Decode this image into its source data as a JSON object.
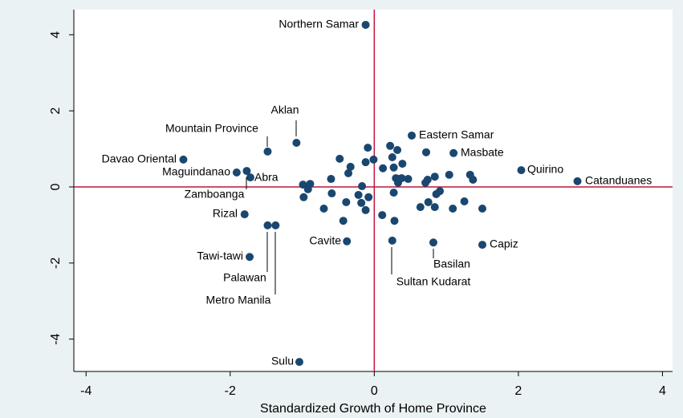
{
  "chart_data": {
    "type": "scatter",
    "x_label": "Standardized Growth of Home Province",
    "xlim": [
      -4.17,
      4.14
    ],
    "ylim": [
      -4.85,
      4.66
    ],
    "xticks": [
      -4,
      -2,
      0,
      2,
      4
    ],
    "yticks": [
      -4,
      -2,
      0,
      2,
      4
    ],
    "reference_lines": {
      "x": 0,
      "y": 0,
      "color": "#c0143c"
    },
    "series": [
      {
        "color": "#1a476f",
        "labels": [
          "Northern Samar",
          "Aklan",
          "Mountain Province",
          "Eastern Samar",
          "Masbate",
          "Davao Oriental",
          "Quirino",
          "Catanduanes",
          "Maguindanao",
          "Abra",
          "Zamboanga",
          "Rizal",
          "Cavite",
          "Capiz",
          "Basilan",
          "Sultan Kudarat",
          "Tawi-tawi",
          "Palawan",
          "Metro Manila",
          "Sulu"
        ],
        "x": [
          -0.12,
          -1.08,
          -1.48,
          0.52,
          1.1,
          -2.65,
          2.04,
          2.82,
          -1.91,
          -1.72,
          -1.77,
          -1.8,
          -0.38,
          1.5,
          0.82,
          0.25,
          -1.73,
          -1.48,
          -1.37,
          -1.04,
          -0.48,
          -0.09,
          0.22,
          0.32,
          0.72,
          0.25,
          0.39,
          -0.33,
          -0.12,
          -0.01,
          0.12,
          0.27,
          0.3,
          0.35,
          0.38,
          0.47,
          0.84,
          1.04,
          1.33,
          1.37,
          0.71,
          0.74,
          0.86,
          0.91,
          0.75,
          0.84,
          0.64,
          1.25,
          1.5,
          1.09,
          -0.6,
          -0.36,
          -0.99,
          -0.89,
          -0.92,
          -0.98,
          -0.59,
          -0.17,
          -0.08,
          -0.22,
          -0.18,
          -0.12,
          0.11,
          0.28,
          -0.7,
          -0.39,
          -0.43,
          0.27,
          0.33
        ],
        "y": [
          4.26,
          1.16,
          0.93,
          1.35,
          0.89,
          0.72,
          0.44,
          0.15,
          0.38,
          0.25,
          0.42,
          -0.72,
          -1.43,
          -1.52,
          -1.46,
          -1.41,
          -1.84,
          -1.01,
          -1.01,
          -4.6,
          0.74,
          1.03,
          1.08,
          0.97,
          0.91,
          0.78,
          0.61,
          0.53,
          0.65,
          0.72,
          0.49,
          0.51,
          0.23,
          0.21,
          0.23,
          0.21,
          0.27,
          0.32,
          0.32,
          0.19,
          0.11,
          0.19,
          -0.19,
          -0.11,
          -0.4,
          -0.53,
          -0.53,
          -0.38,
          -0.57,
          -0.57,
          0.21,
          0.36,
          0.06,
          0.08,
          -0.06,
          -0.27,
          -0.17,
          0.02,
          -0.27,
          -0.21,
          -0.42,
          -0.61,
          -0.74,
          -0.89,
          -0.57,
          -0.4,
          -0.89,
          -0.15,
          0.11
        ]
      }
    ]
  }
}
